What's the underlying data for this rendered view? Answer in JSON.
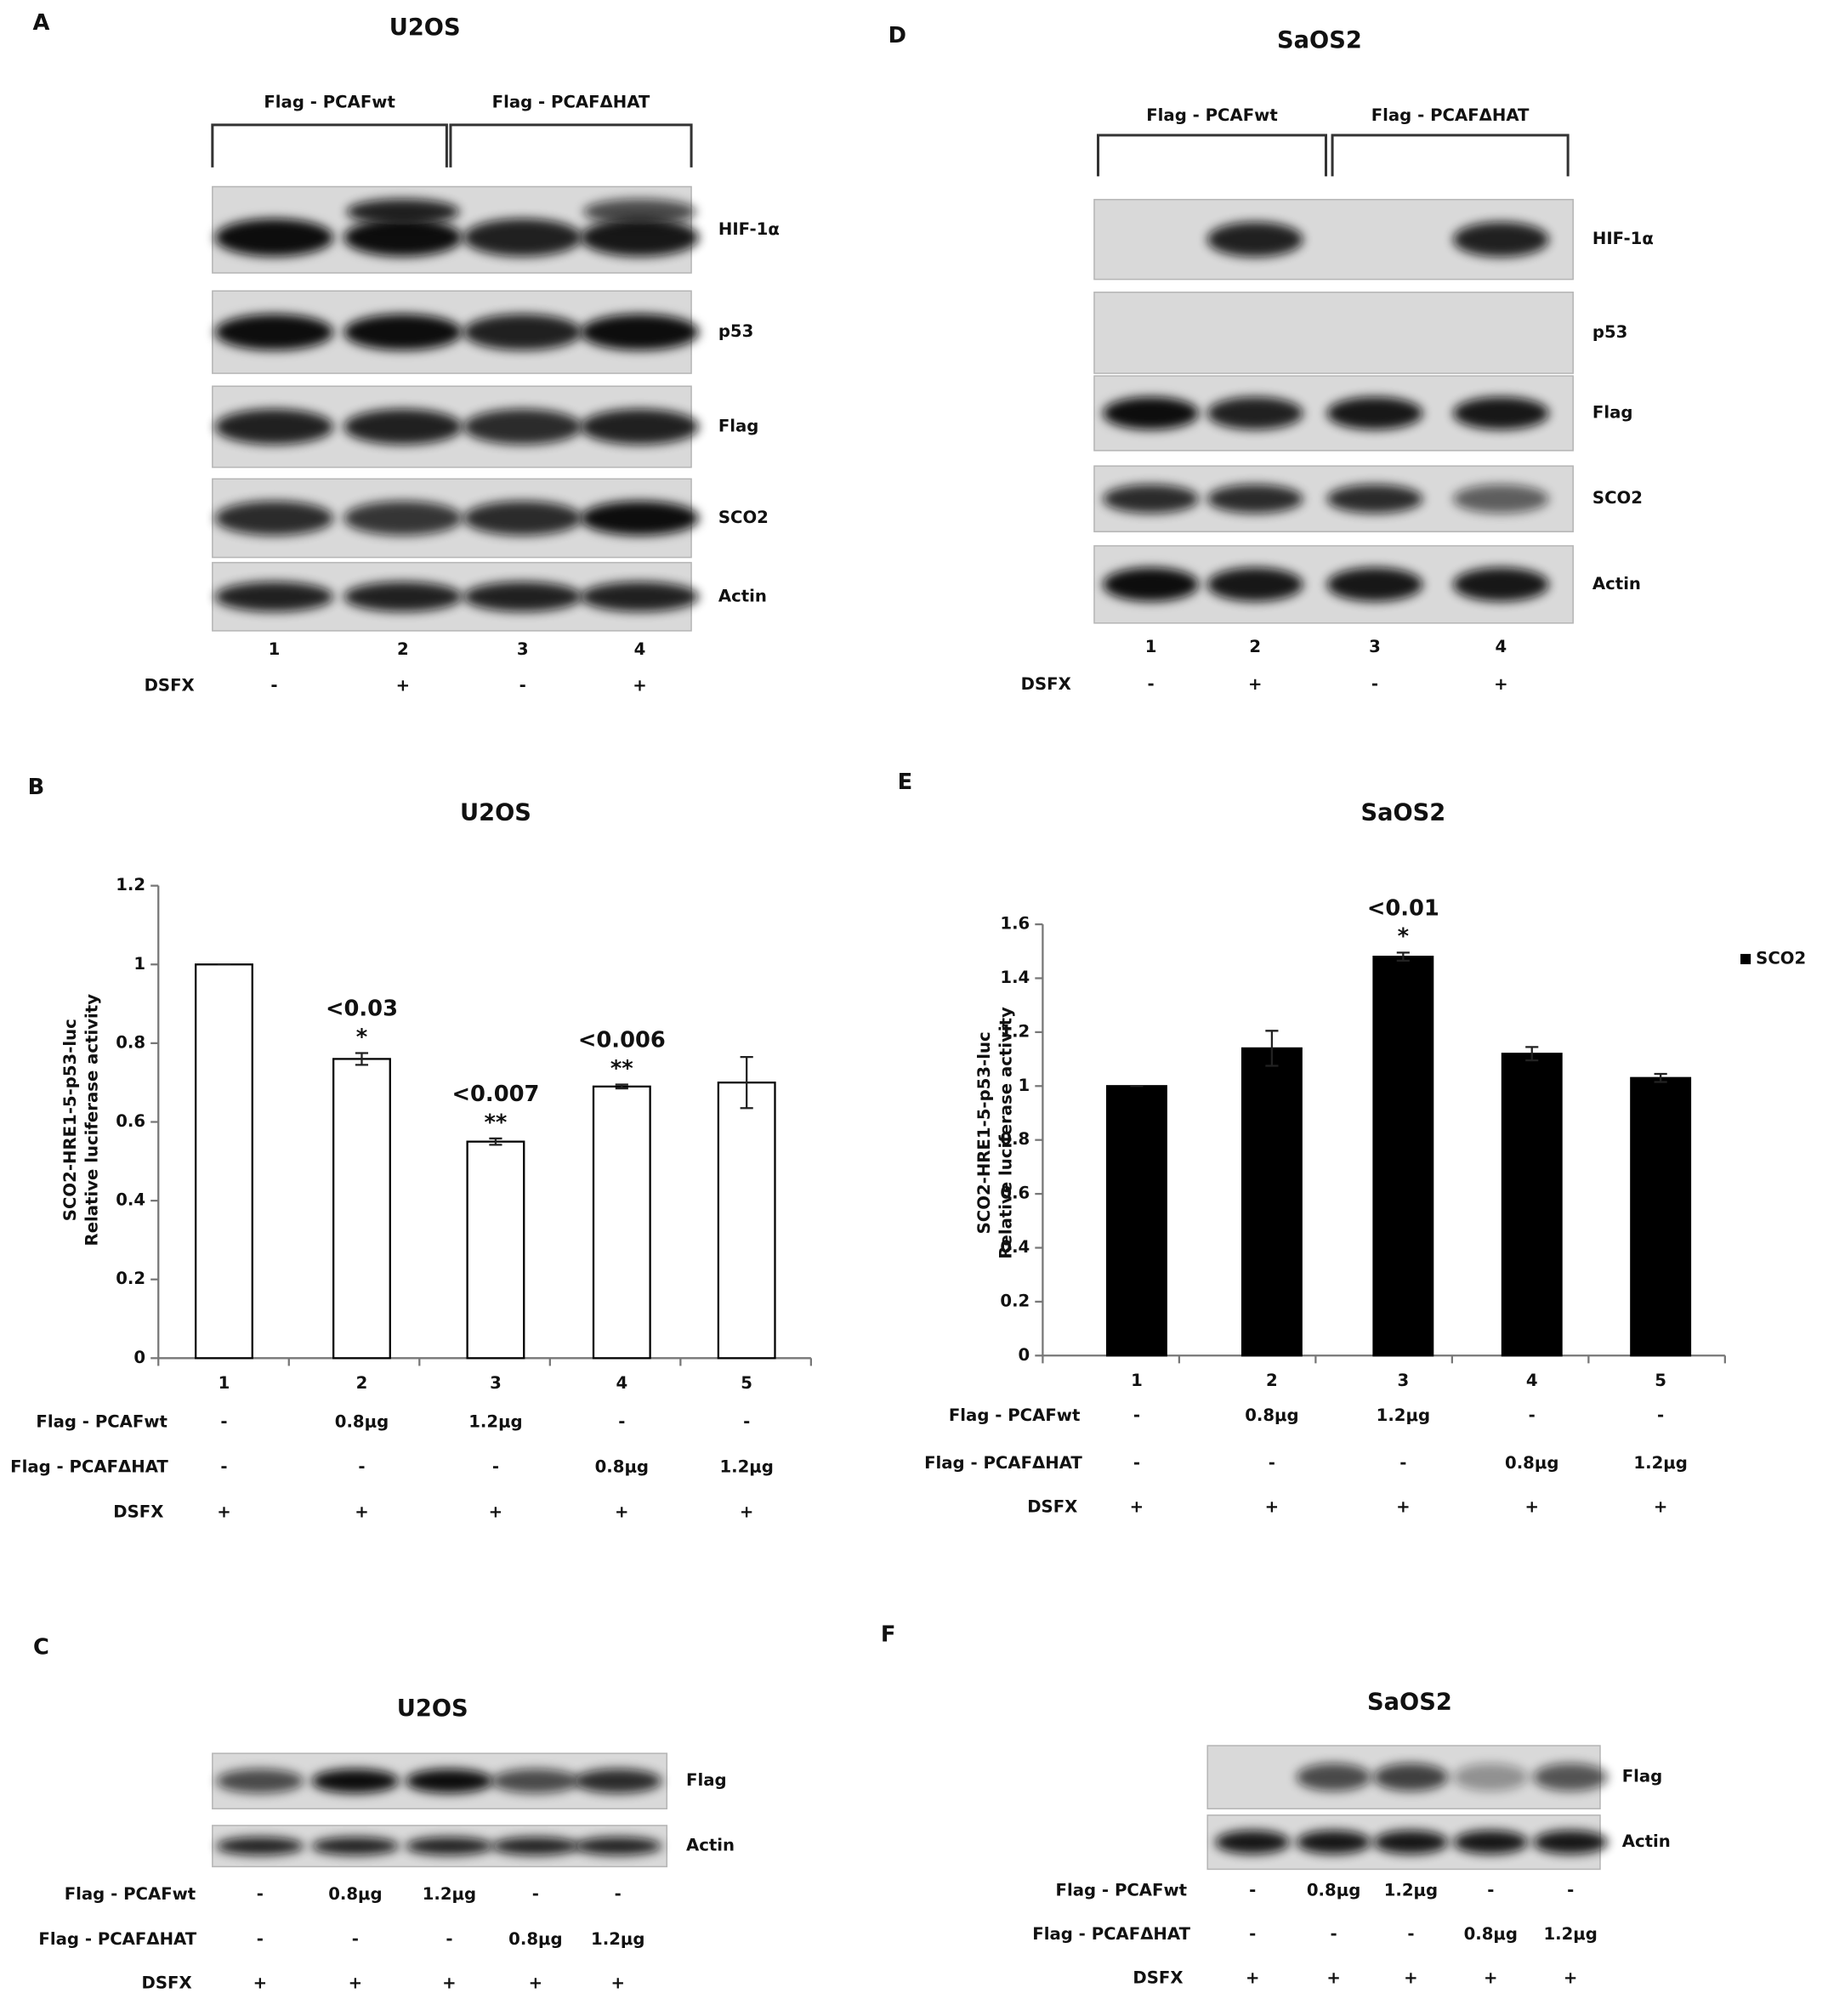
{
  "panels": {
    "A": {
      "label": "A",
      "title": "U2OS",
      "groups": [
        "Flag - PCAFwt",
        "Flag - PCAFΔHAT"
      ],
      "bands": [
        "HIF-1α",
        "p53",
        "Flag",
        "SCO2",
        "Actin"
      ],
      "lanes": [
        "1",
        "2",
        "3",
        "4"
      ],
      "treatments": [
        {
          "label": "DSFX",
          "values": [
            "-",
            "+",
            "-",
            "+"
          ]
        }
      ]
    },
    "D": {
      "label": "D",
      "title": "SaOS2",
      "groups": [
        "Flag - PCAFwt",
        "Flag - PCAFΔHAT"
      ],
      "bands": [
        "HIF-1α",
        "p53",
        "Flag",
        "SCO2",
        "Actin"
      ],
      "lanes": [
        "1",
        "2",
        "3",
        "4"
      ],
      "treatments": [
        {
          "label": "DSFX",
          "values": [
            "-",
            "+",
            "-",
            "+"
          ]
        }
      ]
    },
    "C": {
      "label": "C",
      "title": "U2OS",
      "bands": [
        "Flag",
        "Actin"
      ],
      "treatments": [
        {
          "label": "Flag - PCAFwt",
          "values": [
            "-",
            "0.8μg",
            "1.2μg",
            "-",
            "-"
          ]
        },
        {
          "label": "Flag - PCAFΔHAT",
          "values": [
            "-",
            "-",
            "-",
            "0.8μg",
            "1.2μg"
          ]
        },
        {
          "label": "DSFX",
          "values": [
            "+",
            "+",
            "+",
            "+",
            "+"
          ]
        }
      ]
    },
    "F": {
      "label": "F",
      "title": "SaOS2",
      "bands": [
        "Flag",
        "Actin"
      ],
      "treatments": [
        {
          "label": "Flag - PCAFwt",
          "values": [
            "-",
            "0.8μg",
            "1.2μg",
            "-",
            "-"
          ]
        },
        {
          "label": "Flag - PCAFΔHAT",
          "values": [
            "-",
            "-",
            "-",
            "0.8μg",
            "1.2μg"
          ]
        },
        {
          "label": "DSFX",
          "values": [
            "+",
            "+",
            "+",
            "+",
            "+"
          ]
        }
      ]
    }
  },
  "chart_data": [
    {
      "type": "bar",
      "panel": "B",
      "title": "U2OS",
      "ylabel": [
        "SCO2-HRE1-5-p53-luc",
        "Relative luciferase activity"
      ],
      "categories": [
        "1",
        "2",
        "3",
        "4",
        "5"
      ],
      "values": [
        1,
        0.76,
        0.55,
        0.69,
        0.7
      ],
      "errors": [
        0,
        0.015,
        0.008,
        0.005,
        0.065
      ],
      "color": "#ffffff",
      "ylim": [
        0,
        1.2
      ],
      "yticks": [
        0,
        0.2,
        0.4,
        0.6,
        0.8,
        1,
        1.2
      ],
      "annotations": [
        null,
        {
          "p": "<0.03",
          "stars": "*"
        },
        {
          "p": "<0.007",
          "stars": "**"
        },
        {
          "p": "<0.006",
          "stars": "**"
        },
        null
      ],
      "treatments": [
        {
          "label": "Flag - PCAFwt",
          "values": [
            "-",
            "0.8μg",
            "1.2μg",
            "-",
            "-"
          ]
        },
        {
          "label": "Flag - PCAFΔHAT",
          "values": [
            "-",
            "-",
            "-",
            "0.8μg",
            "1.2μg"
          ]
        },
        {
          "label": "DSFX",
          "values": [
            "+",
            "+",
            "+",
            "+",
            "+"
          ]
        }
      ]
    },
    {
      "type": "bar",
      "panel": "E",
      "title": "SaOS2",
      "ylabel": [
        "SCO2-HRE1-5-p53-luc",
        "Relative luciferase activity"
      ],
      "categories": [
        "1",
        "2",
        "3",
        "4",
        "5"
      ],
      "series": [
        {
          "name": "SCO2",
          "color": "#000000",
          "values": [
            1,
            1.14,
            1.48,
            1.12,
            1.03
          ],
          "errors": [
            0,
            0.065,
            0.015,
            0.025,
            0.015
          ]
        }
      ],
      "legend": "right",
      "ylim": [
        0,
        1.6
      ],
      "yticks": [
        0,
        0.2,
        0.4,
        0.6,
        0.8,
        1,
        1.2,
        1.4,
        1.6
      ],
      "annotations": [
        null,
        null,
        {
          "p": "<0.01",
          "stars": "*"
        },
        null,
        null
      ],
      "treatments": [
        {
          "label": "Flag - PCAFwt",
          "values": [
            "-",
            "0.8μg",
            "1.2μg",
            "-",
            "-"
          ]
        },
        {
          "label": "Flag - PCAFΔHAT",
          "values": [
            "-",
            "-",
            "-",
            "0.8μg",
            "1.2μg"
          ]
        },
        {
          "label": "DSFX",
          "values": [
            "+",
            "+",
            "+",
            "+",
            "+"
          ]
        }
      ]
    }
  ]
}
